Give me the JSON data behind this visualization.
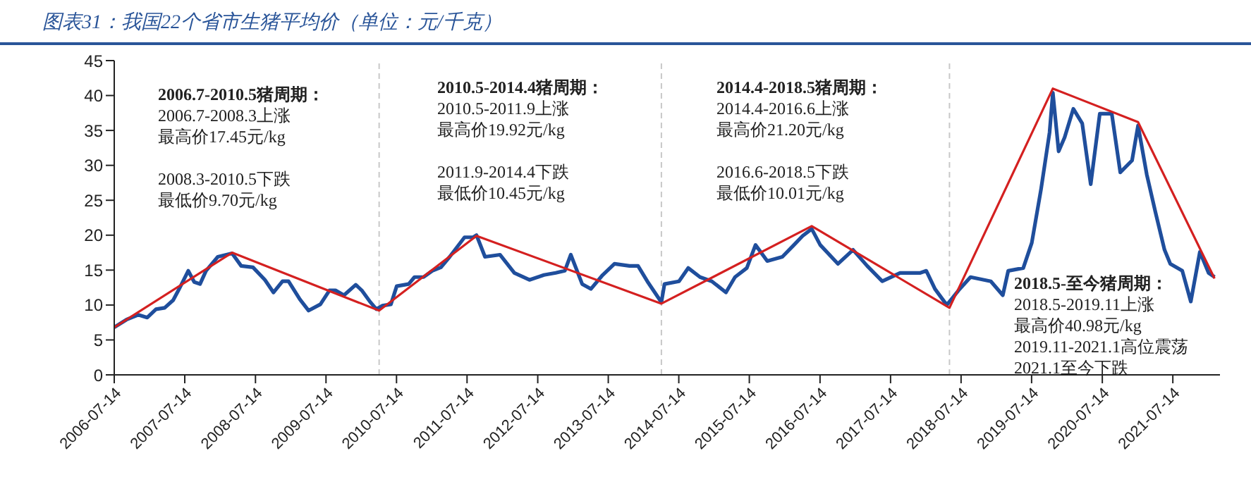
{
  "chart_data": {
    "type": "line",
    "title": "图表31：我国22个省市生猪平均价（单位：元/千克）",
    "series": [
      {
        "color": "#1f4e9c",
        "x": [
          "2006-07-14",
          "2006-09-15",
          "2006-11-15",
          "2007-01-01",
          "2007-02-15",
          "2007-04-01",
          "2007-05-15",
          "2007-06-15",
          "2007-08-01",
          "2007-09-01",
          "2007-10-01",
          "2007-11-01",
          "2008-01-01",
          "2008-03-15",
          "2008-05-01",
          "2008-07-01",
          "2008-09-01",
          "2008-10-15",
          "2008-12-01",
          "2009-01-01",
          "2009-03-01",
          "2009-04-15",
          "2009-06-15",
          "2009-08-01",
          "2009-09-01",
          "2009-10-15",
          "2009-12-15",
          "2010-01-15",
          "2010-03-01",
          "2010-04-01",
          "2010-05-01",
          "2010-06-15",
          "2010-07-15",
          "2010-09-15",
          "2010-10-15",
          "2010-12-01",
          "2011-01-15",
          "2011-03-01",
          "2011-04-15",
          "2011-07-01",
          "2011-08-15",
          "2011-09-01",
          "2011-10-15",
          "2012-01-01",
          "2012-03-15",
          "2012-06-01",
          "2012-08-15",
          "2012-10-15",
          "2012-12-01",
          "2013-01-01",
          "2013-03-01",
          "2013-04-15",
          "2013-06-15",
          "2013-08-15",
          "2013-11-01",
          "2013-12-15",
          "2014-02-01",
          "2014-04-15",
          "2014-05-01",
          "2014-07-15",
          "2014-09-01",
          "2014-11-01",
          "2015-01-01",
          "2015-03-15",
          "2015-05-01",
          "2015-07-01",
          "2015-08-15",
          "2015-10-15",
          "2016-01-01",
          "2016-03-01",
          "2016-04-15",
          "2016-06-01",
          "2016-07-15",
          "2016-10-15",
          "2017-01-01",
          "2017-03-15",
          "2017-06-01",
          "2017-09-01",
          "2017-12-15",
          "2018-01-15",
          "2018-03-01",
          "2018-05-01",
          "2018-07-01",
          "2018-09-01",
          "2018-12-15",
          "2019-02-15",
          "2019-03-15",
          "2019-06-01",
          "2019-07-15",
          "2019-09-01",
          "2019-10-15",
          "2019-11-01",
          "2019-12-01",
          "2020-01-01",
          "2020-02-15",
          "2020-04-01",
          "2020-05-15",
          "2020-07-01",
          "2020-09-01",
          "2020-10-15",
          "2020-12-15",
          "2021-01-15",
          "2021-03-01",
          "2021-04-15",
          "2021-06-01",
          "2021-07-01",
          "2021-09-01",
          "2021-10-15",
          "2021-12-01",
          "2022-01-15",
          "2022-02-15"
        ],
        "values": [
          6.8,
          7.9,
          8.6,
          8.2,
          9.4,
          9.6,
          10.7,
          12.3,
          14.9,
          13.3,
          13.0,
          14.9,
          16.9,
          17.4,
          15.6,
          15.4,
          13.6,
          11.8,
          13.4,
          13.4,
          10.8,
          9.2,
          10.1,
          12.1,
          12.1,
          11.4,
          12.9,
          12.1,
          10.4,
          9.4,
          9.9,
          10.1,
          12.7,
          13.0,
          14.0,
          14.0,
          14.9,
          15.4,
          16.9,
          19.7,
          19.7,
          20.0,
          16.9,
          17.2,
          14.6,
          13.6,
          14.3,
          14.6,
          14.9,
          17.2,
          13.0,
          12.3,
          14.3,
          15.9,
          15.6,
          15.6,
          13.4,
          10.4,
          13.0,
          13.4,
          15.3,
          14.0,
          13.4,
          11.8,
          14.0,
          15.3,
          18.6,
          16.3,
          16.9,
          18.6,
          19.9,
          20.9,
          18.6,
          15.9,
          17.9,
          15.6,
          13.4,
          14.6,
          14.6,
          14.9,
          12.3,
          10.0,
          12.1,
          14.0,
          13.4,
          11.4,
          14.9,
          15.3,
          18.9,
          26.6,
          34.7,
          40.4,
          32.0,
          34.0,
          38.1,
          36.0,
          27.3,
          37.4,
          37.4,
          29.0,
          30.7,
          35.7,
          28.7,
          23.3,
          17.9,
          15.9,
          14.9,
          10.5,
          17.6,
          14.6,
          14.0
        ]
      },
      {
        "color": "#d42020",
        "x": [
          "2006-07-14",
          "2008-03-15",
          "2010-04-15",
          "2011-09-01",
          "2014-04-15",
          "2016-06-01",
          "2018-05-15",
          "2019-11-01",
          "2021-01-15",
          "2022-02-15"
        ],
        "values": [
          6.8,
          17.5,
          9.2,
          19.9,
          10.2,
          21.3,
          9.6,
          41.0,
          36.2,
          13.8
        ]
      }
    ],
    "xlim": [
      "2006-07-14",
      "2022-03-15"
    ],
    "xticks": [
      "2006-07-14",
      "2007-07-14",
      "2008-07-14",
      "2009-07-14",
      "2010-07-14",
      "2011-07-14",
      "2012-07-14",
      "2013-07-14",
      "2014-07-14",
      "2015-07-14",
      "2016-07-14",
      "2017-07-14",
      "2018-07-14",
      "2019-07-14",
      "2020-07-14",
      "2021-07-14"
    ],
    "ylim": [
      0,
      45
    ],
    "yticks": [
      0,
      5,
      10,
      15,
      20,
      25,
      30,
      35,
      40,
      45
    ],
    "ref_lines": [
      {
        "axis": "x",
        "value": "2010-04-15",
        "color": "#c8c8c8",
        "line_style": "dashed"
      },
      {
        "axis": "x",
        "value": "2014-04-15",
        "color": "#c8c8c8",
        "line_style": "dashed"
      },
      {
        "axis": "x",
        "value": "2018-05-15",
        "color": "#c8c8c8",
        "line_style": "dashed"
      }
    ],
    "annotations": [
      "2006.7-2010.5猪周期：",
      "2006.7-2008.3上涨",
      "最高价17.45元/kg",
      "2008.3-2010.5下跌",
      "最低价9.70元/kg",
      "2010.5-2014.4猪周期：",
      "2010.5-2011.9上涨",
      "最高价19.92元/kg",
      "2011.9-2014.4下跌",
      "最低价10.45元/kg",
      "2014.4-2018.5猪周期：",
      "2014.4-2016.6上涨",
      "最高价21.20元/kg",
      "2016.6-2018.5下跌",
      "最低价10.01元/kg",
      "2018.5-至今猪周期：",
      "2018.5-2019.11上涨",
      "最高价40.98元/kg",
      "2019.11-2021.1高位震荡",
      "2021.1至今下跌"
    ],
    "grid": false,
    "legend": false,
    "marker": "none",
    "line_style": "solid"
  }
}
